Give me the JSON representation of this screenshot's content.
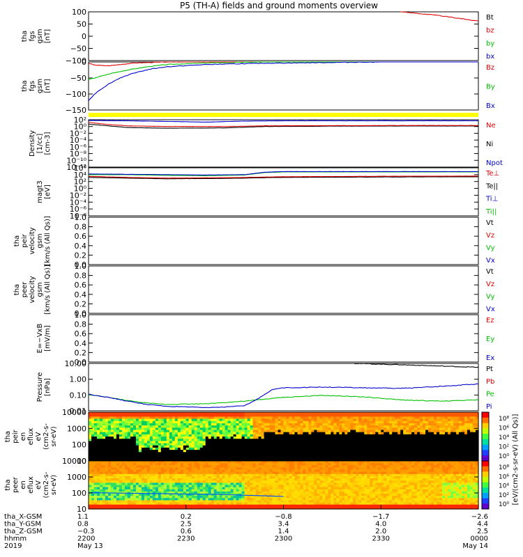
{
  "title": "P5 (TH-A) fields and ground moments overview",
  "colors": {
    "red": "#e00000",
    "green": "#00c000",
    "blue": "#0000d0",
    "black": "#000000",
    "yellow": "#ffff00"
  },
  "chart_data": [
    {
      "id": "p1",
      "type": "line",
      "ylabel": [
        "tha",
        "fgs",
        "gsm",
        "[nT]"
      ],
      "yticks": [
        "100",
        "50",
        "0",
        "−50",
        "−100"
      ],
      "ylim": [
        -100,
        100
      ],
      "legend": [
        {
          "name": "Bt",
          "color": "#000000"
        },
        {
          "name": "bz",
          "color": "#e00000"
        },
        {
          "name": "by",
          "color": "#00c000"
        },
        {
          "name": "bx",
          "color": "#0000d0"
        }
      ],
      "series": [
        {
          "name": "bz",
          "color": "#e00000",
          "x": [
            0.8,
            0.9,
            1.0
          ],
          "y": [
            100,
            85,
            62
          ]
        }
      ]
    },
    {
      "id": "p2",
      "type": "line",
      "ylabel": [
        "tha",
        "fgs",
        "gsm",
        "[nT]"
      ],
      "yticks": [
        "0",
        "−50",
        "−100",
        "−150"
      ],
      "ylim": [
        -150,
        0
      ],
      "extra_tick": "−150",
      "legend": [
        {
          "name": "Bz",
          "color": "#e00000"
        },
        {
          "name": "By",
          "color": "#00c000"
        },
        {
          "name": "Bx",
          "color": "#0000d0"
        }
      ],
      "series": [
        {
          "name": "Bz",
          "color": "#e00000",
          "x": [
            0,
            0.02,
            0.05,
            0.08,
            0.12,
            0.2,
            0.35,
            0.5,
            0.7,
            0.85,
            1.0
          ],
          "y": [
            -5,
            -10,
            -12,
            -8,
            -3,
            0,
            2,
            3,
            3,
            2,
            2
          ]
        },
        {
          "name": "By",
          "color": "#00c000",
          "x": [
            0,
            0.03,
            0.06,
            0.1,
            0.15,
            0.2,
            0.3,
            0.45,
            0.6,
            0.8,
            1.0
          ],
          "y": [
            -55,
            -45,
            -35,
            -25,
            -15,
            -8,
            -3,
            0,
            2,
            4,
            5
          ]
        },
        {
          "name": "Bx",
          "color": "#0000d0",
          "x": [
            0,
            0.02,
            0.05,
            0.08,
            0.12,
            0.16,
            0.2,
            0.3,
            0.45,
            0.6,
            0.8,
            1.0
          ],
          "y": [
            -120,
            -95,
            -70,
            -50,
            -33,
            -22,
            -15,
            -8,
            -4,
            -2,
            1,
            2
          ]
        }
      ]
    },
    {
      "id": "p3",
      "type": "line",
      "ylabel": [
        "Density",
        "[1/cc]",
        "[cm-3]"
      ],
      "yticks": [
        "10²",
        "10⁰",
        "10⁻²",
        "10⁻⁴",
        "10⁻⁶",
        "10⁻⁸",
        "10⁻¹⁰",
        "10⁻¹²"
      ],
      "ylog": [
        -12,
        2
      ],
      "legend": [
        {
          "name": "Ne",
          "color": "#e00000"
        },
        {
          "name": "Ni",
          "color": "#000000"
        },
        {
          "name": "Npot",
          "color": "#0000d0"
        }
      ],
      "series": [
        {
          "name": "Ni",
          "color": "#000000",
          "x": [
            0,
            0.05,
            0.1,
            0.2,
            0.35,
            0.45,
            0.6,
            0.8,
            1.0
          ],
          "y": [
            0.7,
            0.2,
            -0.3,
            -0.5,
            -0.4,
            0,
            0.1,
            0.15,
            0.15
          ]
        },
        {
          "name": "Ne",
          "color": "#e00000",
          "x": [
            0,
            0.05,
            0.1,
            0.2,
            0.35,
            0.45,
            0.6,
            0.8,
            1.0
          ],
          "y": [
            1.2,
            0.6,
            0.2,
            0,
            0,
            0.2,
            0.25,
            0.3,
            0.3
          ]
        },
        {
          "name": "Npot",
          "color": "#0000d0",
          "x": [
            0,
            0.1,
            0.2,
            0.3,
            0.4,
            0.5,
            1.0
          ],
          "y": [
            1.8,
            1.7,
            1.5,
            1.3,
            1.6,
            1.7,
            1.7
          ]
        }
      ]
    },
    {
      "id": "p4",
      "type": "line",
      "ylabel": [
        "magt3",
        "[eV]"
      ],
      "yticks": [
        "10⁶",
        "10⁴",
        "10²",
        "10⁰",
        "10⁻²",
        "10⁻⁴",
        "10⁻⁶",
        "10⁻⁸"
      ],
      "ylog": [
        -8,
        6
      ],
      "legend": [
        {
          "name": "Te⊥",
          "color": "#e00000"
        },
        {
          "name": "Te||",
          "color": "#000000"
        },
        {
          "name": "Ti⊥",
          "color": "#0000d0"
        },
        {
          "name": "Ti||",
          "color": "#00c000"
        }
      ],
      "series": [
        {
          "name": "Ti||",
          "color": "#00c000",
          "x": [
            0,
            0.1,
            0.2,
            0.3,
            0.4,
            0.45,
            0.5,
            0.7,
            1.0
          ],
          "y": [
            4.0,
            4.0,
            3.8,
            3.7,
            3.9,
            4.6,
            4.8,
            4.8,
            4.8
          ]
        },
        {
          "name": "Ti⊥",
          "color": "#0000d0",
          "x": [
            0,
            0.1,
            0.2,
            0.3,
            0.4,
            0.45,
            0.5,
            0.7,
            1.0
          ],
          "y": [
            4.2,
            4.1,
            4.0,
            3.9,
            4.0,
            4.7,
            4.9,
            4.9,
            4.9
          ]
        },
        {
          "name": "Te||",
          "color": "#000000",
          "x": [
            0,
            0.1,
            0.2,
            0.35,
            0.5,
            0.7,
            1.0
          ],
          "y": [
            3.2,
            3.0,
            2.8,
            2.9,
            3.2,
            3.3,
            3.4
          ]
        },
        {
          "name": "Te⊥",
          "color": "#e00000",
          "x": [
            0,
            0.1,
            0.2,
            0.35,
            0.5,
            0.7,
            1.0
          ],
          "y": [
            3.5,
            3.2,
            3.0,
            3.1,
            3.4,
            3.5,
            3.6
          ]
        }
      ]
    },
    {
      "id": "p5",
      "type": "line",
      "ylabel": [
        "tha",
        "peir",
        "velocity",
        "gsm",
        "[km/s (All Qs)]"
      ],
      "yticks": [
        "1.0",
        "0.8",
        "0.6",
        "0.4",
        "0.2",
        "0.0"
      ],
      "ylim": [
        0,
        1
      ],
      "legend": [
        {
          "name": "Vt",
          "color": "#000000"
        },
        {
          "name": "Vz",
          "color": "#e00000"
        },
        {
          "name": "Vy",
          "color": "#00c000"
        },
        {
          "name": "Vx",
          "color": "#0000d0"
        }
      ],
      "series": []
    },
    {
      "id": "p6",
      "type": "line",
      "ylabel": [
        "tha",
        "peer",
        "velocity",
        "gsm",
        "[km/s (All Qs)]"
      ],
      "yticks": [
        "1.0",
        "0.8",
        "0.6",
        "0.4",
        "0.2",
        "0.0"
      ],
      "ylim": [
        0,
        1
      ],
      "legend": [
        {
          "name": "Vt",
          "color": "#000000"
        },
        {
          "name": "Vz",
          "color": "#e00000"
        },
        {
          "name": "Vy",
          "color": "#00c000"
        },
        {
          "name": "Vx",
          "color": "#0000d0"
        }
      ],
      "series": []
    },
    {
      "id": "p7",
      "type": "line",
      "ylabel": [
        "E=−VxB",
        "[mV/m]"
      ],
      "yticks": [
        "1.0",
        "0.8",
        "0.6",
        "0.4",
        "0.2",
        "0.0"
      ],
      "ylim": [
        0,
        1
      ],
      "legend": [
        {
          "name": "Ez",
          "color": "#e00000"
        },
        {
          "name": "Ey",
          "color": "#00c000"
        },
        {
          "name": "Ex",
          "color": "#0000d0"
        }
      ],
      "series": []
    },
    {
      "id": "p8",
      "type": "line",
      "ylabel": [
        "Pressure",
        "[nPa]"
      ],
      "yticks": [
        "10.00",
        "1.00",
        "0.10",
        "0.01"
      ],
      "ylog": [
        -2.35,
        1.35
      ],
      "legend": [
        {
          "name": "Pt",
          "color": "#000000"
        },
        {
          "name": "Pb",
          "color": "#e00000"
        },
        {
          "name": "Pe",
          "color": "#00c000"
        },
        {
          "name": "Pi",
          "color": "#0000d0"
        }
      ],
      "series": [
        {
          "name": "Pt",
          "color": "#000000",
          "x": [
            0.68,
            0.8,
            0.9,
            1.0
          ],
          "y": [
            1.35,
            1.25,
            1.15,
            1.05
          ]
        },
        {
          "name": "Pe",
          "color": "#00c000",
          "x": [
            0,
            0.05,
            0.1,
            0.15,
            0.2,
            0.3,
            0.4,
            0.5,
            0.6,
            0.7,
            0.8,
            0.9,
            1.0
          ],
          "y": [
            -1.1,
            -1.3,
            -1.55,
            -1.75,
            -1.85,
            -1.8,
            -1.6,
            -1.3,
            -1.15,
            -1.25,
            -1.5,
            -1.6,
            -1.5
          ]
        },
        {
          "name": "Pi",
          "color": "#0000d0",
          "x": [
            0,
            0.05,
            0.1,
            0.15,
            0.2,
            0.25,
            0.3,
            0.35,
            0.4,
            0.43,
            0.47,
            0.5,
            0.6,
            0.7,
            0.8,
            0.9,
            1.0
          ],
          "y": [
            -1.05,
            -1.3,
            -1.6,
            -1.85,
            -2.0,
            -2.05,
            -2.1,
            -2.05,
            -1.95,
            -1.5,
            -0.7,
            -0.55,
            -0.5,
            -0.55,
            -0.6,
            -0.45,
            -0.25
          ]
        }
      ]
    },
    {
      "id": "p9",
      "type": "heatmap",
      "ylabel": [
        "tha",
        "peir",
        "en",
        "eflux",
        "eV",
        "(cm2-s-",
        "sr-eV)"
      ],
      "yticks": [
        "10000",
        "1000",
        "100",
        "10"
      ],
      "ylog": [
        0.9,
        4.45
      ]
    },
    {
      "id": "p10",
      "type": "heatmap",
      "ylabel": [
        "tha",
        "peer",
        "en",
        "eflux",
        "eV",
        "(cm2-s-",
        "sr-eV)"
      ],
      "yticks": [
        "10000",
        "1000",
        "100",
        "10"
      ],
      "ylog": [
        0.9,
        4.45
      ]
    }
  ],
  "colorbar": {
    "label": "[eV/(cm2-s-sr-eV) (All Qs)]",
    "ticks_top": [
      "10⁸",
      "10⁶",
      "10⁴",
      "10²",
      "10⁰"
    ],
    "ticks_bottom": [
      "10⁸",
      "10⁶",
      "10⁴",
      "10²",
      "10⁰"
    ]
  },
  "xaxis": {
    "rows": [
      {
        "label": "tha_X-GSM",
        "values": [
          "1.1",
          "0.2",
          "−0.8",
          "−1.7",
          "−2.6"
        ]
      },
      {
        "label": "tha_Y-GSM",
        "values": [
          "0.8",
          "2.5",
          "3.4",
          "4.0",
          "4.4"
        ]
      },
      {
        "label": "tha_Z-GSM",
        "values": [
          "−0.3",
          "0.6",
          "1.4",
          "2.0",
          "2.5"
        ]
      },
      {
        "label": "hhmm",
        "values": [
          "2200",
          "2230",
          "2300",
          "2330",
          "0000"
        ]
      },
      {
        "label": "2019",
        "values": [
          "May 13",
          "",
          "",
          "",
          "May 14"
        ]
      }
    ],
    "tick_fracs": [
      0,
      0.25,
      0.5,
      0.75,
      1.0
    ]
  }
}
